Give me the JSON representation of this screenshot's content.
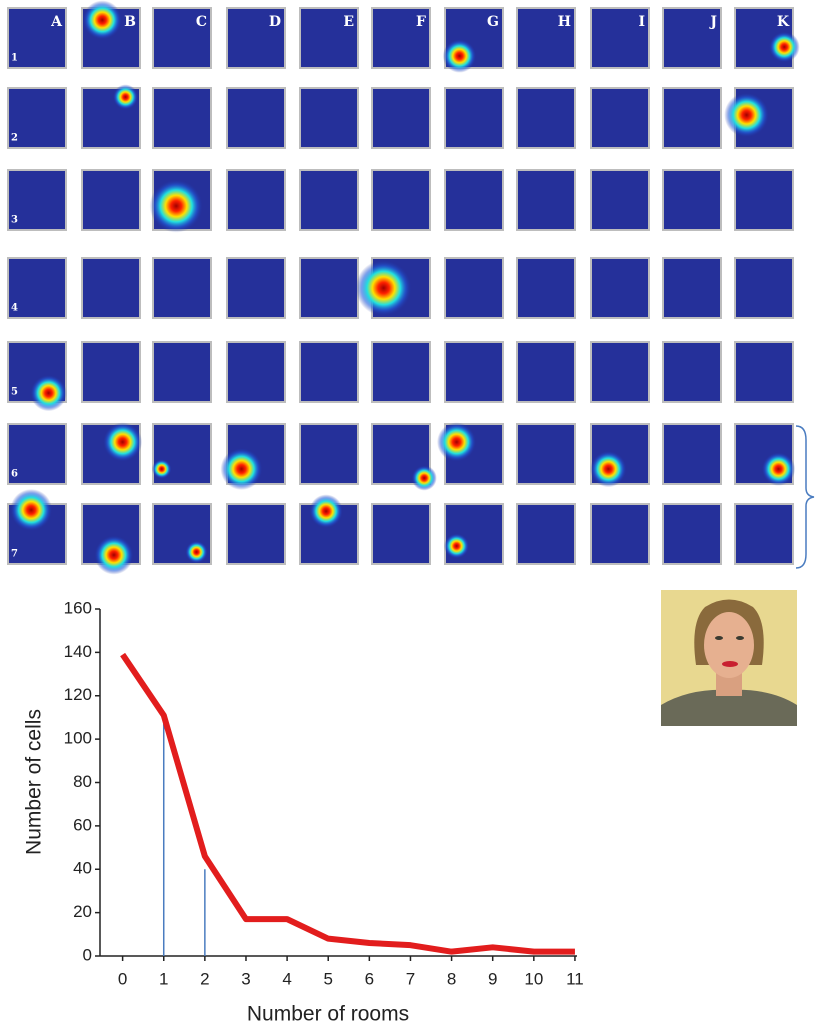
{
  "heatmap_grid": {
    "columns": [
      "A",
      "B",
      "C",
      "D",
      "E",
      "F",
      "G",
      "H",
      "I",
      "J",
      "K"
    ],
    "rows": [
      "1",
      "2",
      "3",
      "4",
      "5",
      "6",
      "7"
    ]
  },
  "chart_data": {
    "type": "line",
    "x_label": "Number of rooms",
    "y_label": "Number of cells",
    "x": [
      0,
      1,
      2,
      3,
      4,
      5,
      6,
      7,
      8,
      9,
      10,
      11
    ],
    "values": [
      139,
      111,
      46,
      17,
      17,
      8,
      6,
      5,
      2,
      4,
      2,
      2
    ],
    "color": "#e21d1d",
    "reference_lines": [
      {
        "x": 1,
        "y": 111
      },
      {
        "x": 2,
        "y": 40
      }
    ],
    "reference_color": "#4a7cc0",
    "xlim": [
      -0.55,
      11.05
    ],
    "xticks": [
      0,
      1,
      2,
      3,
      4,
      5,
      6,
      7,
      8,
      9,
      10,
      11
    ],
    "ylim": [
      0,
      160
    ],
    "yticks": [
      0,
      20,
      40,
      60,
      80,
      100,
      120,
      140,
      160
    ]
  }
}
